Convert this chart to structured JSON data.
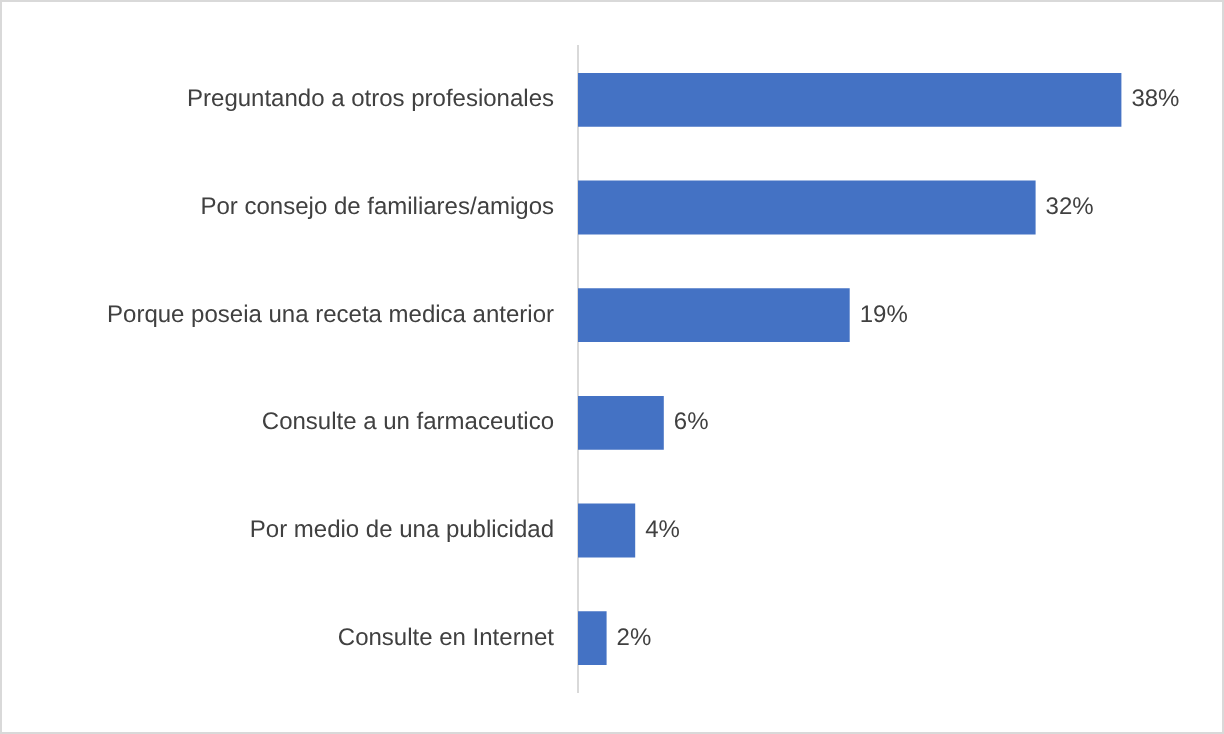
{
  "chart_data": {
    "type": "bar",
    "orientation": "horizontal",
    "categories": [
      "Preguntando a otros profesionales",
      "Por consejo de familiares/amigos",
      "Porque poseia una receta medica anterior",
      "Consulte a un farmaceutico",
      "Por medio de una publicidad",
      "Consulte en Internet"
    ],
    "values": [
      38,
      32,
      19,
      6,
      4,
      2
    ],
    "value_labels": [
      "38%",
      "32%",
      "19%",
      "6%",
      "4%",
      "2%"
    ],
    "color": "#4472c4",
    "tick_labels": "y",
    "legend": false
  }
}
